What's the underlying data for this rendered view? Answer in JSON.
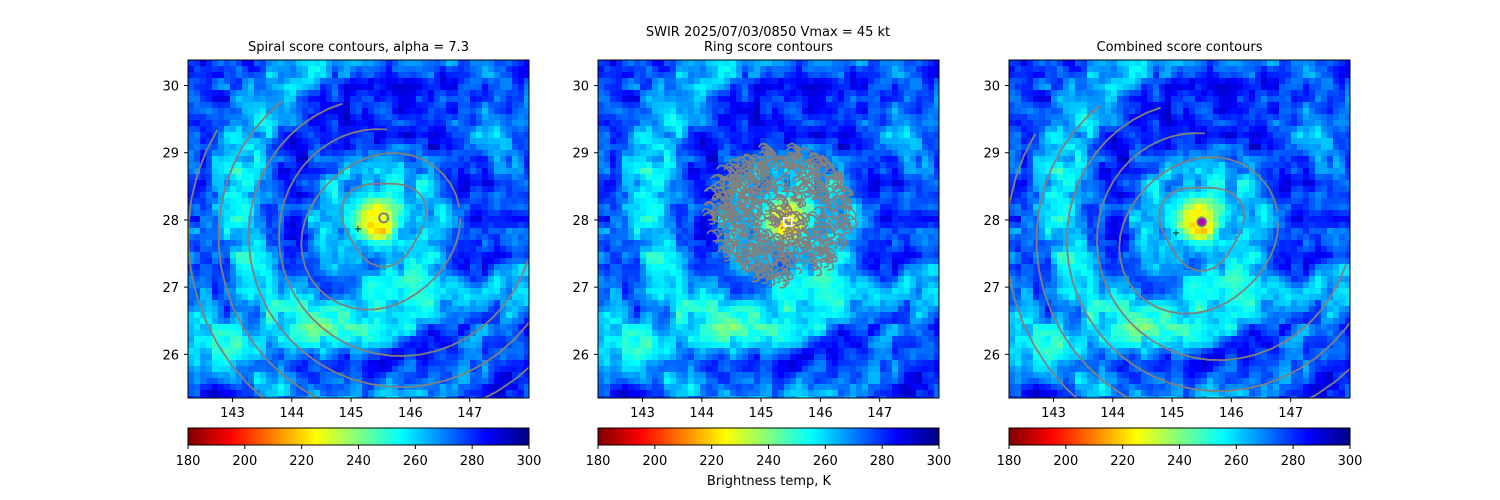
{
  "figure": {
    "suptitle_line1": "SWIR  2025/07/03/0850    Vmax = 45 kt",
    "colorbar_label": "Brightness temp, K"
  },
  "colormap": {
    "name": "jet_r",
    "stops": [
      "#800000",
      "#ff0000",
      "#ff8000",
      "#ffff00",
      "#80ff80",
      "#00ffff",
      "#0080ff",
      "#0000ff",
      "#000080"
    ]
  },
  "colors": {
    "contour": "#808080",
    "center_fill": "#b000b0",
    "ring_center": "#ffffff"
  },
  "chart_data": [
    {
      "type": "heatmap",
      "title": "Spiral score contours, alpha =  7.3",
      "xlim": [
        142.25,
        148.0
      ],
      "ylim": [
        25.35,
        30.38
      ],
      "xticks": [
        143,
        144,
        145,
        146,
        147
      ],
      "yticks": [
        26,
        27,
        28,
        29,
        30
      ],
      "overlay": "spiral",
      "center": [
        145.55,
        28.03
      ],
      "colorbar": {
        "range": [
          180,
          300
        ],
        "ticks": [
          180,
          200,
          220,
          240,
          260,
          280,
          300
        ]
      }
    },
    {
      "type": "heatmap",
      "title": "Ring score contours",
      "xlim": [
        142.25,
        148.0
      ],
      "ylim": [
        25.35,
        30.38
      ],
      "xticks": [
        143,
        144,
        145,
        146,
        147
      ],
      "yticks": [
        26,
        27,
        28,
        29,
        30
      ],
      "overlay": "ring",
      "center": [
        145.45,
        27.97
      ],
      "colorbar": {
        "range": [
          180,
          300
        ],
        "ticks": [
          180,
          200,
          220,
          240,
          260,
          280,
          300
        ]
      }
    },
    {
      "type": "heatmap",
      "title": "Combined score contours",
      "xlim": [
        142.25,
        148.0
      ],
      "ylim": [
        25.35,
        30.38
      ],
      "xticks": [
        143,
        144,
        145,
        146,
        147
      ],
      "yticks": [
        26,
        27,
        28,
        29,
        30
      ],
      "overlay": "combined",
      "center": [
        145.5,
        27.97
      ],
      "colorbar": {
        "range": [
          180,
          300
        ],
        "ticks": [
          180,
          200,
          220,
          240,
          260,
          280,
          300
        ]
      }
    }
  ]
}
